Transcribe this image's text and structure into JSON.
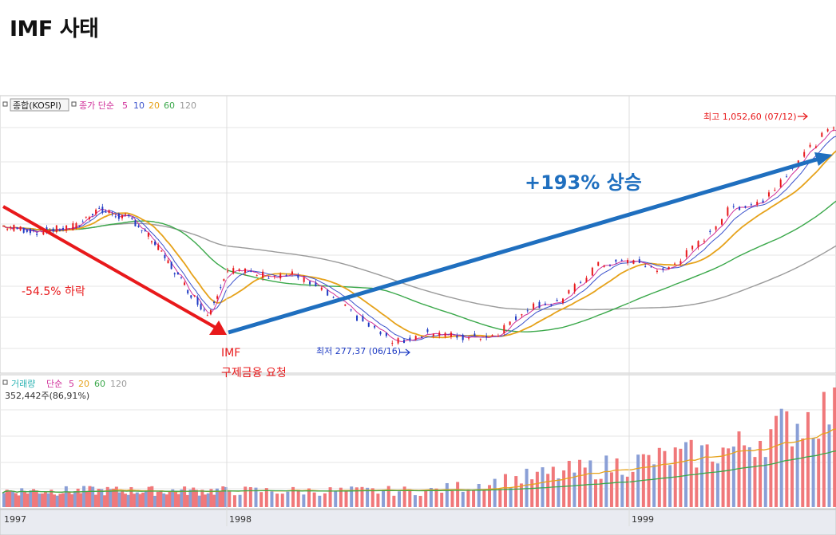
{
  "page_title": "IMF 사태",
  "colors": {
    "price_up": "#e8191b",
    "price_down": "#1f3cc4",
    "ma5": "#d0309a",
    "ma10": "#3b52cc",
    "ma20": "#e6a21a",
    "ma60": "#3aa84a",
    "ma120": "#9a9a9a",
    "vol_up": "#f0787a",
    "vol_down": "#8a9fd6",
    "arrow_down": "#e8191b",
    "arrow_up": "#1f6fbf",
    "panel_border": "#c8c8c8",
    "grid": "#e6e6e6"
  },
  "price_panel": {
    "legend": {
      "series_label": "종합(KOSPI)",
      "ma_label": "종가 단순",
      "periods": [
        "5",
        "10",
        "20",
        "60",
        "120"
      ]
    },
    "high_label": "최고 1,052,60 (07/12)",
    "low_label": "최저 277,37 (06/16)"
  },
  "volume_panel": {
    "legend": {
      "series_label": "거래량",
      "ma_label": "단순",
      "periods": [
        "5",
        "20",
        "60",
        "120"
      ]
    },
    "value_label": "352,442주(86,91%)"
  },
  "annotations": {
    "drop": "-54.5% 하락",
    "imf_line1": "IMF",
    "imf_line2": "구제금융 요청",
    "rise": "+193% 상승"
  },
  "x_axis": {
    "tick_labels": [
      "1997",
      "1998",
      "1999"
    ]
  },
  "chart_data": {
    "type": "line",
    "title": "",
    "xlabel": "",
    "ylabel": "",
    "x_ticks": [
      "1997",
      "1998",
      "1999"
    ],
    "ylim": [
      250,
      1100
    ],
    "series": [
      {
        "name": "종합(KOSPI)",
        "points": [
          [
            "1997-01",
            700
          ],
          [
            "1997-03",
            680
          ],
          [
            "1997-05",
            700
          ],
          [
            "1997-06",
            760
          ],
          [
            "1997-08",
            720
          ],
          [
            "1997-09",
            650
          ],
          [
            "1997-10",
            560
          ],
          [
            "1997-11",
            470
          ],
          [
            "1997-12",
            390
          ],
          [
            "1998-01",
            550
          ],
          [
            "1998-02",
            530
          ],
          [
            "1998-03",
            530
          ],
          [
            "1998-04",
            460
          ],
          [
            "1998-05",
            370
          ],
          [
            "1998-06",
            290
          ],
          [
            "1998-07",
            330
          ],
          [
            "1998-08",
            310
          ],
          [
            "1998-09",
            320
          ],
          [
            "1998-10",
            420
          ],
          [
            "1998-11",
            440
          ],
          [
            "1998-12",
            560
          ],
          [
            "1999-01",
            580
          ],
          [
            "1999-02",
            540
          ],
          [
            "1999-03",
            630
          ],
          [
            "1999-04",
            760
          ],
          [
            "1999-05",
            790
          ],
          [
            "1999-06",
            930
          ],
          [
            "1999-07",
            1040
          ],
          [
            "1999-08",
            960
          ]
        ]
      }
    ],
    "annotations": [
      {
        "text": "최고 1,052,60 (07/12)",
        "value": 1052.6
      },
      {
        "text": "최저 277,37 (06/16)",
        "value": 277.37
      },
      {
        "text": "-54.5% 하락"
      },
      {
        "text": "+193% 상승"
      }
    ]
  }
}
